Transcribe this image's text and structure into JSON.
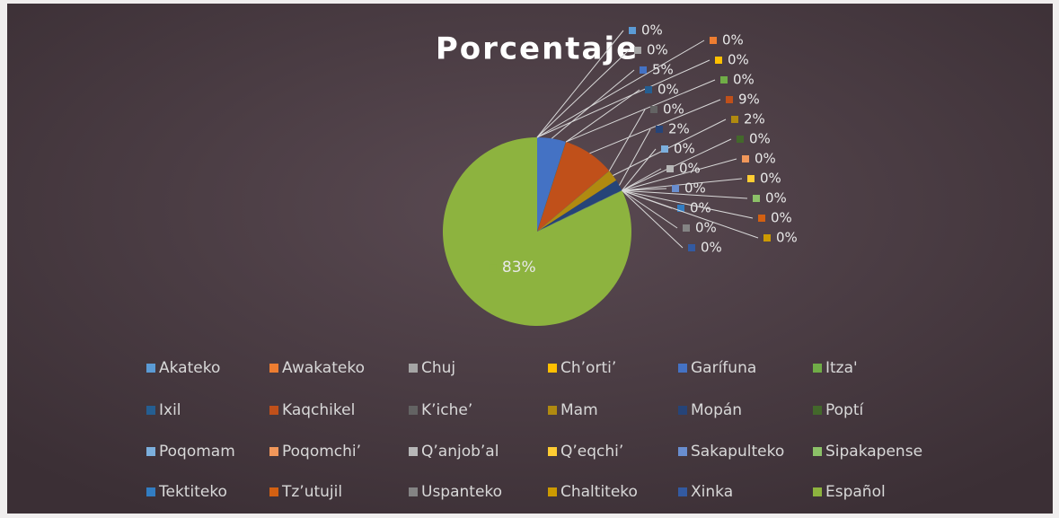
{
  "chart_data": {
    "type": "pie",
    "title": "Porcentaje",
    "categories": [
      "Akateko",
      "Awakateko",
      "Chuj",
      "Ch’orti’",
      "Garífuna",
      "Itza'",
      "Ixil",
      "Kaqchikel",
      "K’iche’",
      "Mam",
      "Mopán",
      "Poptí",
      "Poqomam",
      "Poqomchi’",
      "Q’anjob’al",
      "Q’eqchi’",
      "Sakapulteko",
      "Sipakapense",
      "Tektiteko",
      "Tz’utujil",
      "Uspanteko",
      "Chaltiteko",
      "Xinka",
      "Español"
    ],
    "values": [
      0,
      0,
      0,
      0,
      5,
      0,
      0,
      9,
      0,
      2,
      2,
      0,
      0,
      0,
      0,
      0,
      0,
      0,
      0,
      0,
      0,
      0,
      0,
      83
    ],
    "value_labels": [
      "0%",
      "0%",
      "0%",
      "0%",
      "5%",
      "0%",
      "0%",
      "9%",
      "0%",
      "2%",
      "2%",
      "0%",
      "0%",
      "0%",
      "0%",
      "0%",
      "0%",
      "0%",
      "0%",
      "0%",
      "0%",
      "0%",
      "0%",
      "83%"
    ],
    "colors": [
      "#5b9bd5",
      "#ed7d31",
      "#a5a5a5",
      "#ffc000",
      "#4472c4",
      "#70ad47",
      "#255e91",
      "#c0501a",
      "#636363",
      "#b08a10",
      "#264478",
      "#43682b",
      "#7cafdd",
      "#f1975a",
      "#b7b7b7",
      "#ffcd33",
      "#698ed0",
      "#8cc168",
      "#327dc2",
      "#d26012",
      "#848484",
      "#cc9a00",
      "#335aa1",
      "#8db33f"
    ],
    "legend": "bottom"
  }
}
